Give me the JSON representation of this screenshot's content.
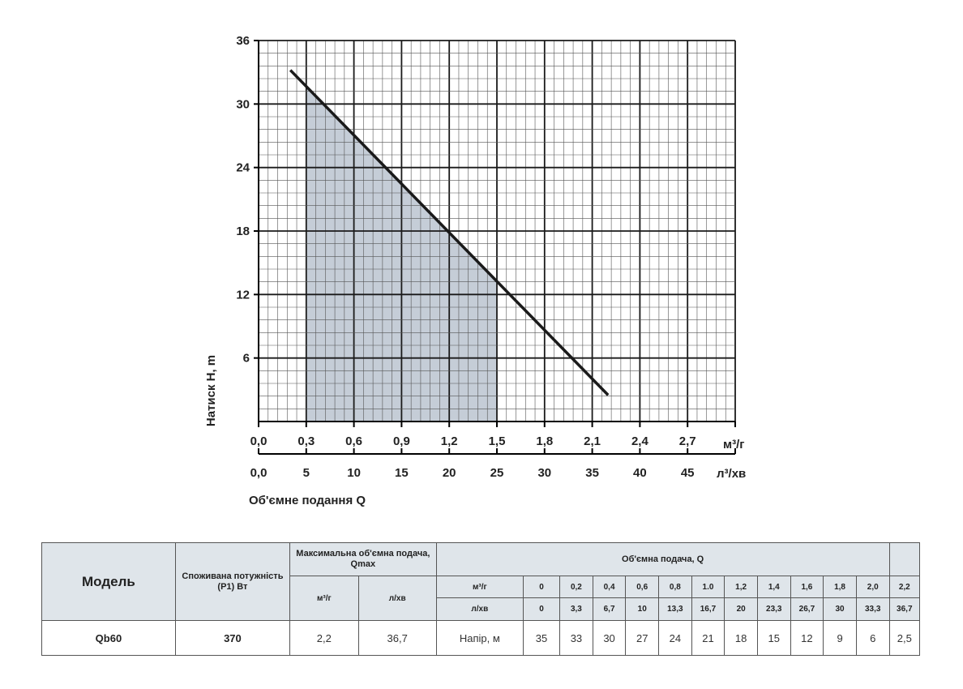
{
  "chart_data": {
    "type": "line",
    "y_label": "Натиск H, m",
    "x_title": "Об'ємне подання Q",
    "x1_unit": "м³/г",
    "x2_unit": "л³/хв",
    "y_ticks": [
      "6",
      "12",
      "18",
      "24",
      "30",
      "36"
    ],
    "x1_ticks": [
      "0,0",
      "0,3",
      "0,6",
      "0,9",
      "1,2",
      "1,5",
      "1,8",
      "2,1",
      "2,4",
      "2,7"
    ],
    "x2_ticks": [
      "0,0",
      "5",
      "10",
      "15",
      "20",
      "25",
      "30",
      "35",
      "40",
      "45"
    ],
    "xlim": [
      0,
      3.0
    ],
    "ylim": [
      0,
      36
    ],
    "grid": true,
    "shaded_range": [
      0.3,
      1.5
    ],
    "series": [
      {
        "points": [
          [
            0.2,
            33.2
          ],
          [
            2.2,
            2.5
          ]
        ],
        "color": "#1a1a1a"
      }
    ],
    "shade_color": "#c5cdd7"
  },
  "table": {
    "h_model": "Модель",
    "h_power": "Споживана потужність (Р1) Вт",
    "h_qmax": "Максимальна об'ємна подача, Qmax",
    "h_flow": "Об'ємна подача, Q",
    "qmax_units": [
      "м³/г",
      "л/хв"
    ],
    "unit_m3h": "м³/г",
    "unit_lmin": "л/хв",
    "m3h_values": [
      "0",
      "0,2",
      "0,4",
      "0,6",
      "0,8",
      "1.0",
      "1,2",
      "1,4",
      "1,6",
      "1,8",
      "2,0",
      "2,2"
    ],
    "lmin_values": [
      "0",
      "3,3",
      "6,7",
      "10",
      "13,3",
      "16,7",
      "20",
      "23,3",
      "26,7",
      "30",
      "33,3",
      "36,7"
    ],
    "row": {
      "model": "Qb60",
      "power": "370",
      "qmax_m3h": "2,2",
      "qmax_lmin": "36,7",
      "head_label": "Напір, м",
      "heads": [
        "35",
        "33",
        "30",
        "27",
        "24",
        "21",
        "18",
        "15",
        "12",
        "9",
        "6",
        "2,5"
      ]
    }
  }
}
